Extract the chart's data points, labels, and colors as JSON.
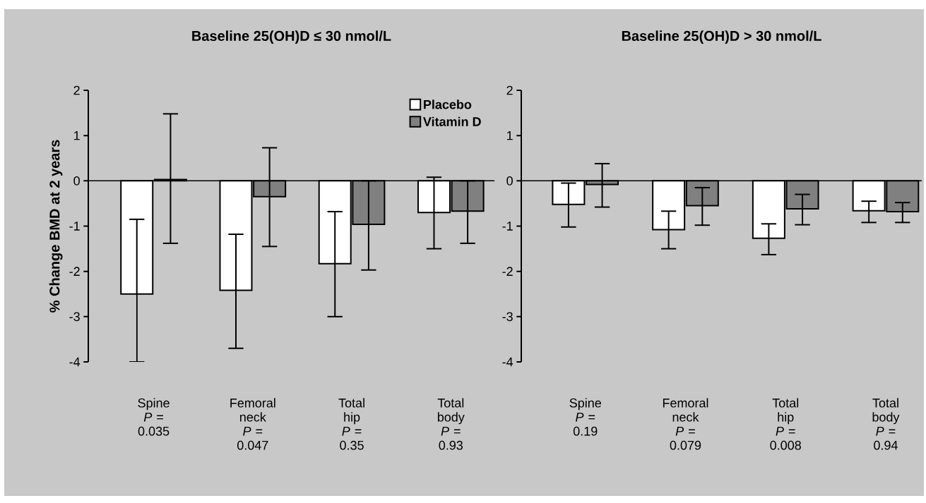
{
  "chart_data": [
    {
      "type": "bar",
      "title": "Baseline 25(OH)D ≤ 30 nmol/L",
      "ylabel": "% Change BMD at 2 years",
      "categories": [
        "Spine",
        "Femoral neck",
        "Total hip",
        "Total body"
      ],
      "annotations": [
        "*P* = 0.035",
        "*P* = 0.047",
        "*P* = 0.35",
        "*P* = 0.93"
      ],
      "series": [
        {
          "name": "Placebo",
          "color": "#ffffff",
          "values": [
            -2.5,
            -2.42,
            -1.83,
            -0.7
          ],
          "errors": [
            [
              -4.0,
              -0.85
            ],
            [
              -3.7,
              -1.18
            ],
            [
              -3.0,
              -0.68
            ],
            [
              -1.5,
              0.08
            ]
          ]
        },
        {
          "name": "Vitamin D",
          "color": "#808080",
          "values": [
            0.03,
            -0.35,
            -0.96,
            -0.67
          ],
          "errors": [
            [
              -1.38,
              1.48
            ],
            [
              -1.45,
              0.73
            ],
            [
              -1.97,
              0.0
            ],
            [
              -1.38,
              0.0
            ]
          ]
        }
      ],
      "ylim": [
        -4,
        2
      ],
      "yticks": [
        -4,
        -3,
        -2,
        -1,
        0,
        1,
        2
      ],
      "legend": "top right"
    },
    {
      "type": "bar",
      "title": "Baseline 25(OH)D > 30 nmol/L",
      "categories": [
        "Spine",
        "Femoral neck",
        "Total hip",
        "Total body"
      ],
      "annotations": [
        "*P* = 0.19",
        "*P* = 0.079",
        "*P* = 0.008",
        "*P* = 0.94"
      ],
      "series": [
        {
          "color": "#ffffff",
          "values": [
            -0.52,
            -1.08,
            -1.27,
            -0.66
          ],
          "errors": [
            [
              -1.02,
              -0.05
            ],
            [
              -1.5,
              -0.67
            ],
            [
              -1.63,
              -0.95
            ],
            [
              -0.92,
              -0.45
            ]
          ]
        },
        {
          "color": "#808080",
          "values": [
            -0.08,
            -0.55,
            -0.62,
            -0.68
          ],
          "errors": [
            [
              -0.58,
              0.38
            ],
            [
              -0.98,
              -0.15
            ],
            [
              -0.97,
              -0.3
            ],
            [
              -0.92,
              -0.48
            ]
          ]
        }
      ],
      "ylim": [
        -4,
        2
      ],
      "yticks": [
        -4,
        -3,
        -2,
        -1,
        0,
        1,
        2
      ]
    }
  ]
}
